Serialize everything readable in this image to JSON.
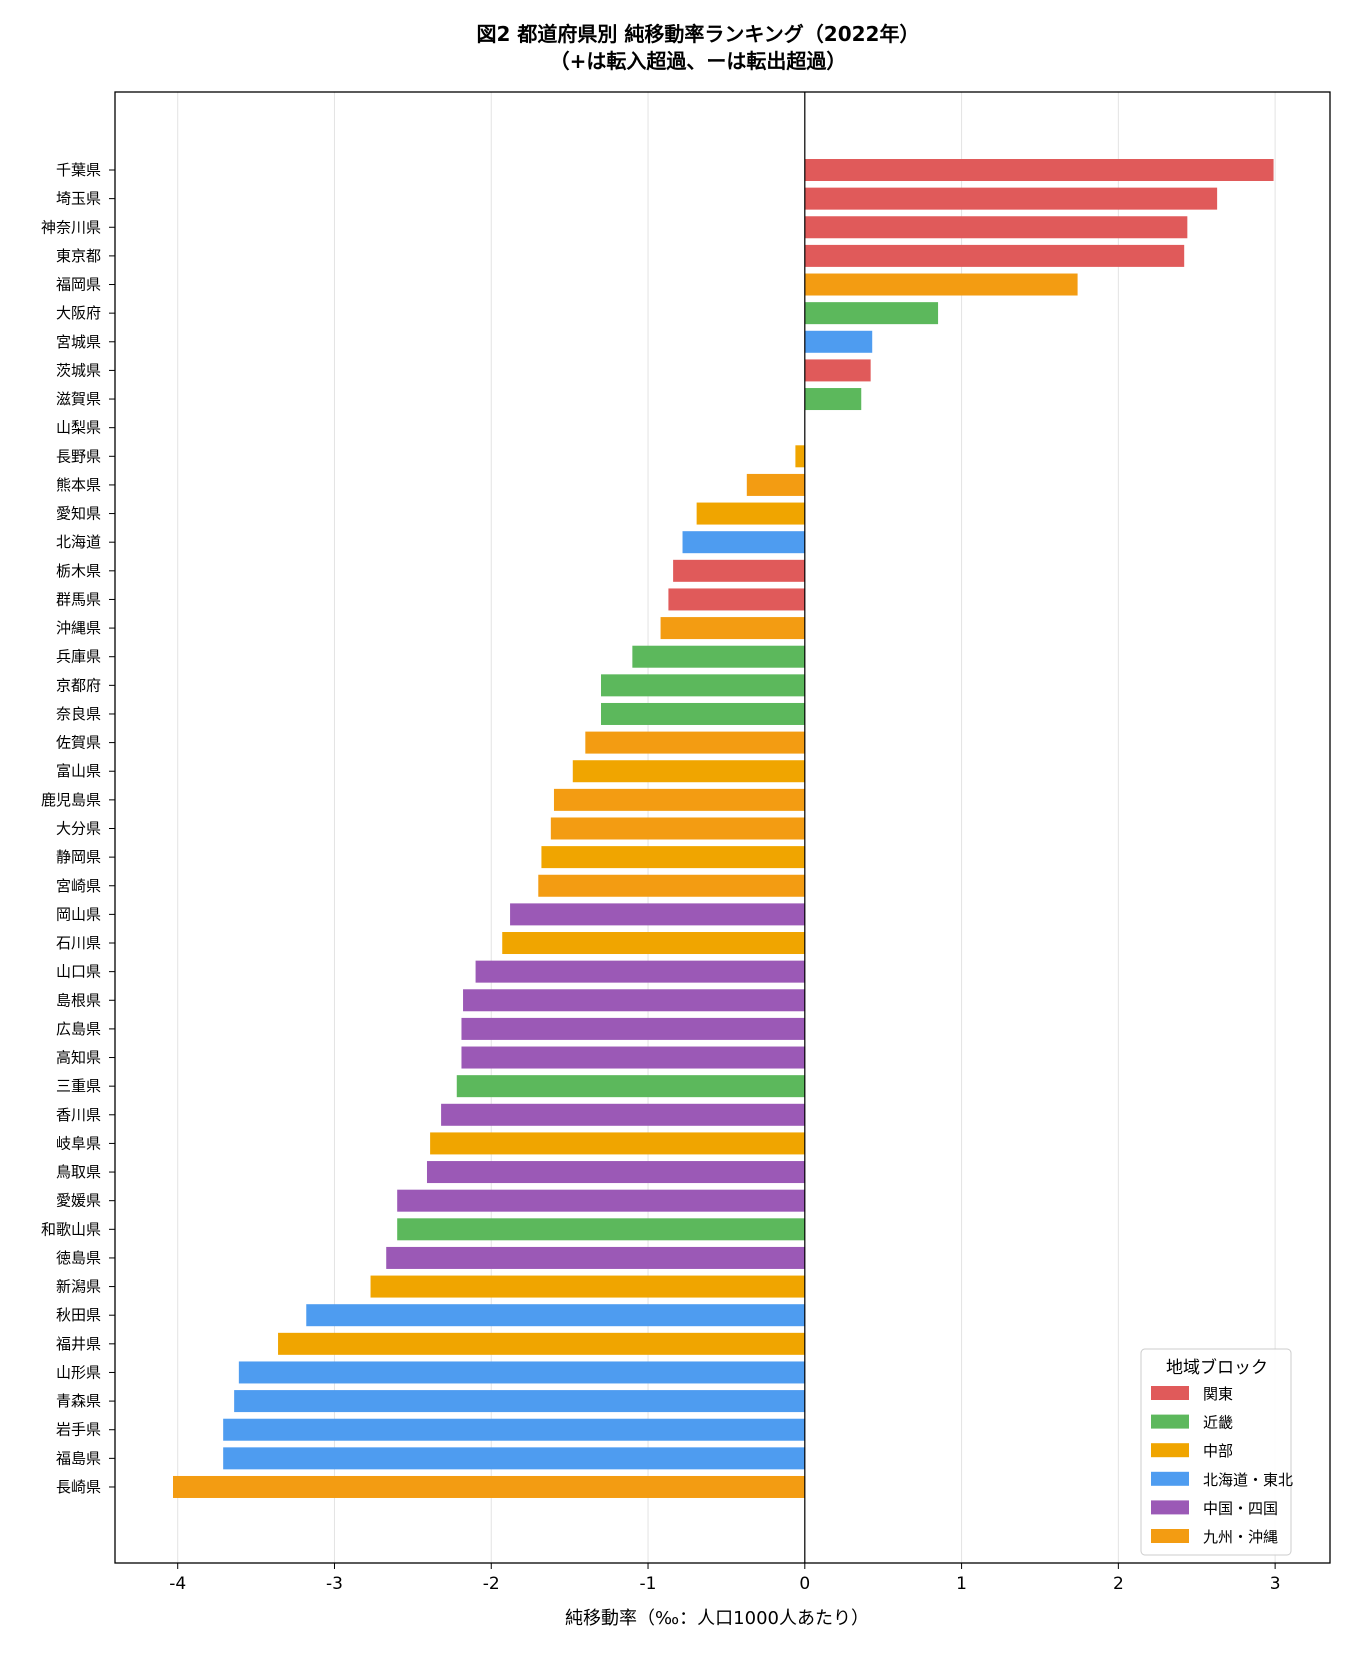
{
  "chart_data": {
    "type": "bar",
    "orientation": "horizontal",
    "title": "図2 都道府県別 純移動率ランキング（2022年）",
    "subtitle": "（+は転入超過、ーは転出超過）",
    "xlabel": "純移動率（‰：人口1000人あたり）",
    "ylabel": "",
    "xlim": [
      -4.4,
      3.35
    ],
    "xticks": [
      -4,
      -3,
      -2,
      -1,
      0,
      1,
      2,
      3
    ],
    "xtick_labels": [
      "-4",
      "-3",
      "-2",
      "-1",
      "0",
      "1",
      "2",
      "3"
    ],
    "grid": "vertical",
    "legend": {
      "title": "地域ブロック",
      "placement": "bottom-right",
      "entries": [
        {
          "name": "関東",
          "color": "#e05a5a"
        },
        {
          "name": "近畿",
          "color": "#5cb85c"
        },
        {
          "name": "中部",
          "color": "#f0a500"
        },
        {
          "name": "北海道・東北",
          "color": "#4e9cf0"
        },
        {
          "name": "中国・四国",
          "color": "#9b59b6"
        },
        {
          "name": "九州・沖縄",
          "color": "#f39c12"
        }
      ]
    },
    "bars": [
      {
        "category": "千葉県",
        "value": 2.99,
        "region": "関東"
      },
      {
        "category": "埼玉県",
        "value": 2.63,
        "region": "関東"
      },
      {
        "category": "神奈川県",
        "value": 2.44,
        "region": "関東"
      },
      {
        "category": "東京都",
        "value": 2.42,
        "region": "関東"
      },
      {
        "category": "福岡県",
        "value": 1.74,
        "region": "九州・沖縄"
      },
      {
        "category": "大阪府",
        "value": 0.85,
        "region": "近畿"
      },
      {
        "category": "宮城県",
        "value": 0.43,
        "region": "北海道・東北"
      },
      {
        "category": "茨城県",
        "value": 0.42,
        "region": "関東"
      },
      {
        "category": "滋賀県",
        "value": 0.36,
        "region": "近畿"
      },
      {
        "category": "山梨県",
        "value": 0.0,
        "region": "中部"
      },
      {
        "category": "長野県",
        "value": -0.06,
        "region": "中部"
      },
      {
        "category": "熊本県",
        "value": -0.37,
        "region": "九州・沖縄"
      },
      {
        "category": "愛知県",
        "value": -0.69,
        "region": "中部"
      },
      {
        "category": "北海道",
        "value": -0.78,
        "region": "北海道・東北"
      },
      {
        "category": "栃木県",
        "value": -0.84,
        "region": "関東"
      },
      {
        "category": "群馬県",
        "value": -0.87,
        "region": "関東"
      },
      {
        "category": "沖縄県",
        "value": -0.92,
        "region": "九州・沖縄"
      },
      {
        "category": "兵庫県",
        "value": -1.1,
        "region": "近畿"
      },
      {
        "category": "京都府",
        "value": -1.3,
        "region": "近畿"
      },
      {
        "category": "奈良県",
        "value": -1.3,
        "region": "近畿"
      },
      {
        "category": "佐賀県",
        "value": -1.4,
        "region": "九州・沖縄"
      },
      {
        "category": "富山県",
        "value": -1.48,
        "region": "中部"
      },
      {
        "category": "鹿児島県",
        "value": -1.6,
        "region": "九州・沖縄"
      },
      {
        "category": "大分県",
        "value": -1.62,
        "region": "九州・沖縄"
      },
      {
        "category": "静岡県",
        "value": -1.68,
        "region": "中部"
      },
      {
        "category": "宮崎県",
        "value": -1.7,
        "region": "九州・沖縄"
      },
      {
        "category": "岡山県",
        "value": -1.88,
        "region": "中国・四国"
      },
      {
        "category": "石川県",
        "value": -1.93,
        "region": "中部"
      },
      {
        "category": "山口県",
        "value": -2.1,
        "region": "中国・四国"
      },
      {
        "category": "島根県",
        "value": -2.18,
        "region": "中国・四国"
      },
      {
        "category": "広島県",
        "value": -2.19,
        "region": "中国・四国"
      },
      {
        "category": "高知県",
        "value": -2.19,
        "region": "中国・四国"
      },
      {
        "category": "三重県",
        "value": -2.22,
        "region": "近畿"
      },
      {
        "category": "香川県",
        "value": -2.32,
        "region": "中国・四国"
      },
      {
        "category": "岐阜県",
        "value": -2.39,
        "region": "中部"
      },
      {
        "category": "鳥取県",
        "value": -2.41,
        "region": "中国・四国"
      },
      {
        "category": "愛媛県",
        "value": -2.6,
        "region": "中国・四国"
      },
      {
        "category": "和歌山県",
        "value": -2.6,
        "region": "近畿"
      },
      {
        "category": "徳島県",
        "value": -2.67,
        "region": "中国・四国"
      },
      {
        "category": "新潟県",
        "value": -2.77,
        "region": "中部"
      },
      {
        "category": "秋田県",
        "value": -3.18,
        "region": "北海道・東北"
      },
      {
        "category": "福井県",
        "value": -3.36,
        "region": "中部"
      },
      {
        "category": "山形県",
        "value": -3.61,
        "region": "北海道・東北"
      },
      {
        "category": "青森県",
        "value": -3.64,
        "region": "北海道・東北"
      },
      {
        "category": "岩手県",
        "value": -3.71,
        "region": "北海道・東北"
      },
      {
        "category": "福島県",
        "value": -3.71,
        "region": "北海道・東北"
      },
      {
        "category": "長崎県",
        "value": -4.03,
        "region": "九州・沖縄"
      }
    ]
  }
}
